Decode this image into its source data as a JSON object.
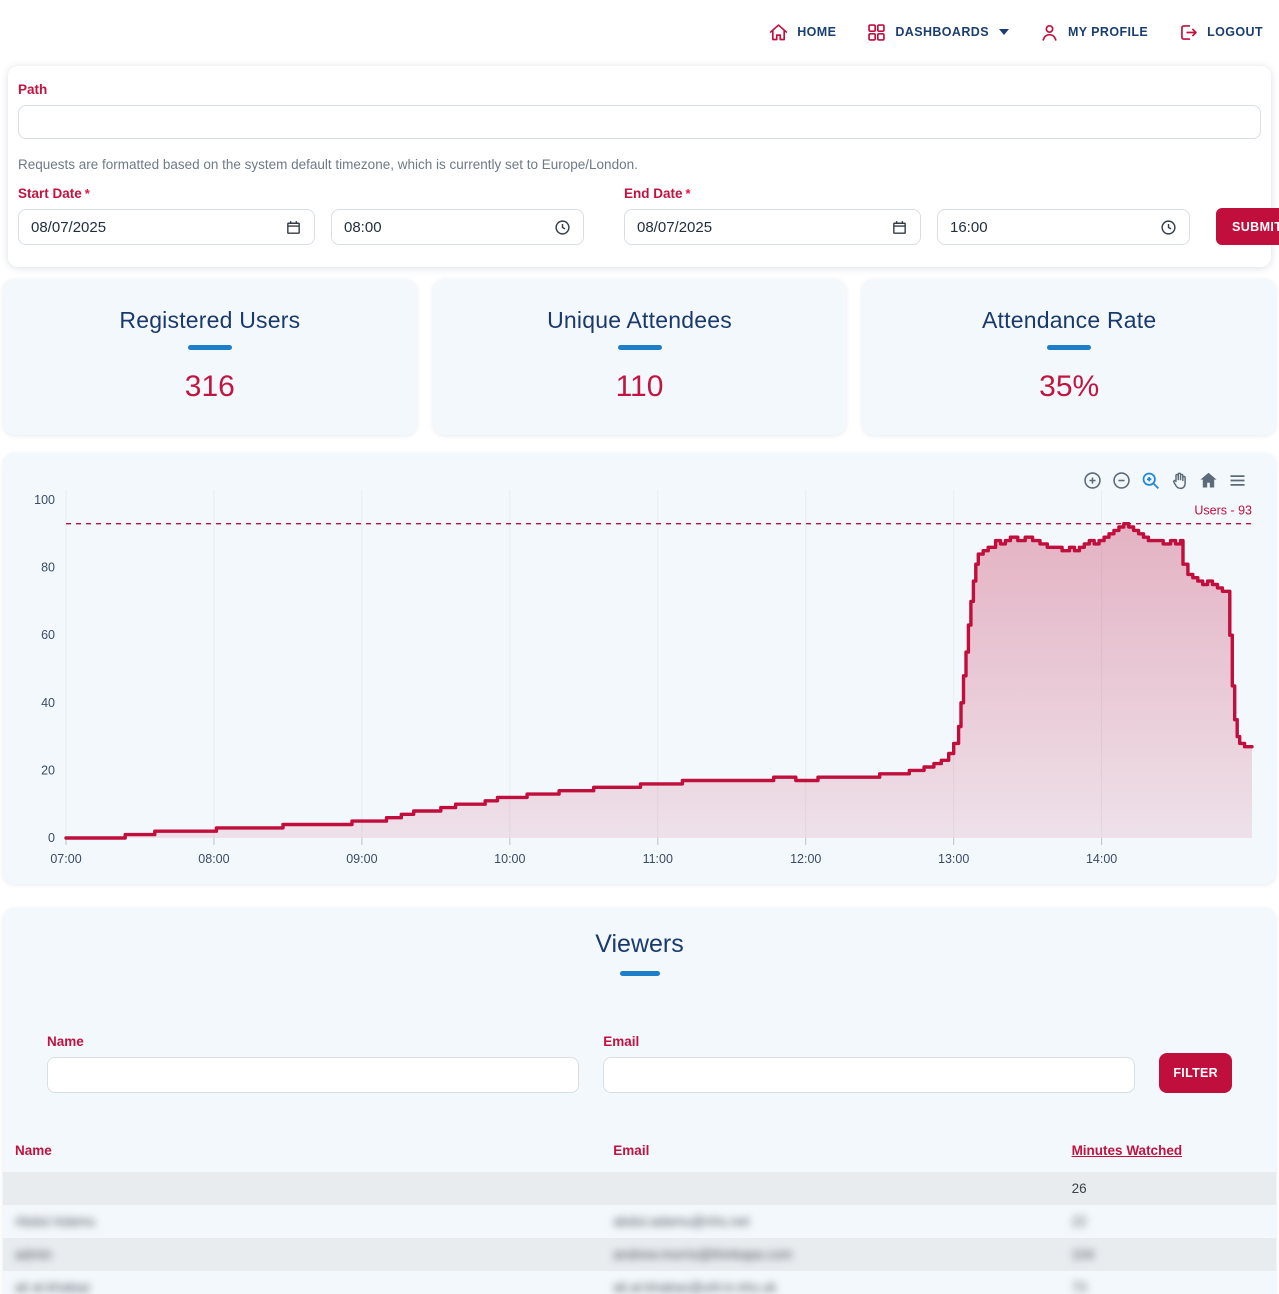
{
  "nav": {
    "items": [
      {
        "label": "HOME",
        "icon": "home-icon",
        "dropdown": false
      },
      {
        "label": "DASHBOARDS",
        "icon": "dashboards-icon",
        "dropdown": true
      },
      {
        "label": "MY PROFILE",
        "icon": "profile-icon",
        "dropdown": false
      },
      {
        "label": "LOGOUT",
        "icon": "logout-icon",
        "dropdown": false
      }
    ]
  },
  "filters": {
    "path_label": "Path",
    "path_value": "",
    "timezone_note": "Requests are formatted based on the system default timezone, which is currently set to Europe/London.",
    "start_date_label": "Start Date",
    "start_date_value": "08/07/2025",
    "start_time_value": "08:00",
    "end_date_label": "End Date",
    "end_date_value": "08/07/2025",
    "end_time_value": "16:00",
    "submit_label": "SUBMIT"
  },
  "stats": [
    {
      "title": "Registered Users",
      "value": "316"
    },
    {
      "title": "Unique Attendees",
      "value": "110"
    },
    {
      "title": "Attendance Rate",
      "value": "35%"
    }
  ],
  "chart_data": {
    "type": "area",
    "title": "",
    "xlabel": "",
    "ylabel": "",
    "x_tick_labels": [
      "07:00",
      "08:00",
      "09:00",
      "10:00",
      "11:00",
      "12:00",
      "13:00",
      "14:00"
    ],
    "x_tick_minutes": [
      0,
      60,
      120,
      180,
      240,
      300,
      360,
      420
    ],
    "x_total_minutes": 481,
    "y_ticks": [
      0,
      20,
      40,
      60,
      80,
      100
    ],
    "ylim": [
      0,
      100
    ],
    "legend_position": "none",
    "grid": "faint-vertical-hour-lines",
    "annotation": {
      "label": "Users - 93",
      "value": 93,
      "style": "dashed-line"
    },
    "series": [
      {
        "name": "Users",
        "interpolation": "step-after",
        "points_minutes_value": [
          [
            0,
            0
          ],
          [
            24,
            1
          ],
          [
            36,
            2
          ],
          [
            58,
            2
          ],
          [
            61,
            3
          ],
          [
            84,
            3
          ],
          [
            88,
            4
          ],
          [
            112,
            4
          ],
          [
            116,
            5
          ],
          [
            126,
            5
          ],
          [
            130,
            6
          ],
          [
            136,
            7
          ],
          [
            141,
            8
          ],
          [
            148,
            8
          ],
          [
            152,
            9
          ],
          [
            158,
            10
          ],
          [
            166,
            10
          ],
          [
            170,
            11
          ],
          [
            175,
            12
          ],
          [
            183,
            12
          ],
          [
            187,
            13
          ],
          [
            196,
            13
          ],
          [
            200,
            14
          ],
          [
            210,
            14
          ],
          [
            214,
            15
          ],
          [
            228,
            15
          ],
          [
            233,
            16
          ],
          [
            246,
            16
          ],
          [
            250,
            17
          ],
          [
            282,
            17
          ],
          [
            287,
            18
          ],
          [
            296,
            17
          ],
          [
            305,
            18
          ],
          [
            325,
            18
          ],
          [
            330,
            19
          ],
          [
            336,
            19
          ],
          [
            342,
            20
          ],
          [
            348,
            21
          ],
          [
            352,
            22
          ],
          [
            355,
            23
          ],
          [
            358,
            25
          ],
          [
            360,
            28
          ],
          [
            362,
            33
          ],
          [
            363,
            40
          ],
          [
            364,
            48
          ],
          [
            365,
            55
          ],
          [
            366,
            63
          ],
          [
            367,
            70
          ],
          [
            368,
            76
          ],
          [
            369,
            81
          ],
          [
            370,
            84
          ],
          [
            372,
            85
          ],
          [
            374,
            86
          ],
          [
            377,
            88
          ],
          [
            379,
            87
          ],
          [
            381,
            88
          ],
          [
            383,
            89
          ],
          [
            386,
            88
          ],
          [
            389,
            89
          ],
          [
            392,
            88
          ],
          [
            395,
            87
          ],
          [
            398,
            86
          ],
          [
            401,
            86
          ],
          [
            404,
            85
          ],
          [
            407,
            86
          ],
          [
            409,
            85
          ],
          [
            411,
            86
          ],
          [
            413,
            87
          ],
          [
            415,
            88
          ],
          [
            417,
            87
          ],
          [
            419,
            88
          ],
          [
            421,
            89
          ],
          [
            423,
            90
          ],
          [
            425,
            91
          ],
          [
            427,
            92
          ],
          [
            429,
            93
          ],
          [
            431,
            92
          ],
          [
            433,
            91
          ],
          [
            435,
            90
          ],
          [
            437,
            89
          ],
          [
            439,
            88
          ],
          [
            442,
            88
          ],
          [
            445,
            87
          ],
          [
            448,
            88
          ],
          [
            450,
            87
          ],
          [
            452,
            88
          ],
          [
            453,
            81
          ],
          [
            455,
            78
          ],
          [
            457,
            77
          ],
          [
            459,
            76
          ],
          [
            461,
            75
          ],
          [
            463,
            76
          ],
          [
            465,
            75
          ],
          [
            467,
            74
          ],
          [
            469,
            73
          ],
          [
            471,
            73
          ],
          [
            472,
            60
          ],
          [
            473,
            45
          ],
          [
            474,
            35
          ],
          [
            475,
            30
          ],
          [
            476,
            28
          ],
          [
            478,
            27
          ],
          [
            481,
            27
          ]
        ]
      }
    ],
    "toolbar_icons": [
      "zoom-in-icon",
      "zoom-out-icon",
      "box-zoom-icon",
      "pan-icon",
      "reset-home-icon",
      "menu-icon"
    ]
  },
  "viewers": {
    "title": "Viewers",
    "name_label": "Name",
    "name_value": "",
    "email_label": "Email",
    "email_value": "",
    "filter_label": "FILTER",
    "table": {
      "columns": [
        "Name",
        "Email",
        "Minutes Watched"
      ],
      "rows": [
        {
          "name": "",
          "email": "",
          "minutes": "26",
          "blurred": false
        },
        {
          "name": "Abdul Adamu",
          "email": "abdul.adamu@nhs.net",
          "minutes": "22",
          "blurred": true
        },
        {
          "name": "admin",
          "email": "andrew.morris@thinkapa.com",
          "minutes": "104",
          "blurred": true
        },
        {
          "name": "ali al-khabaz",
          "email": "ali.al-khabaz@uhl-tr.nhs.uk",
          "minutes": "73",
          "blurred": true
        }
      ]
    }
  },
  "colors": {
    "accent_crimson": "#c00f3d",
    "navy_text": "#1b3a6b",
    "underline_blue": "#1d7ec9",
    "panel_bg": "#f3f8fc",
    "stripe_gray": "#e8ecef",
    "active_tool_blue": "#1e88d2"
  }
}
